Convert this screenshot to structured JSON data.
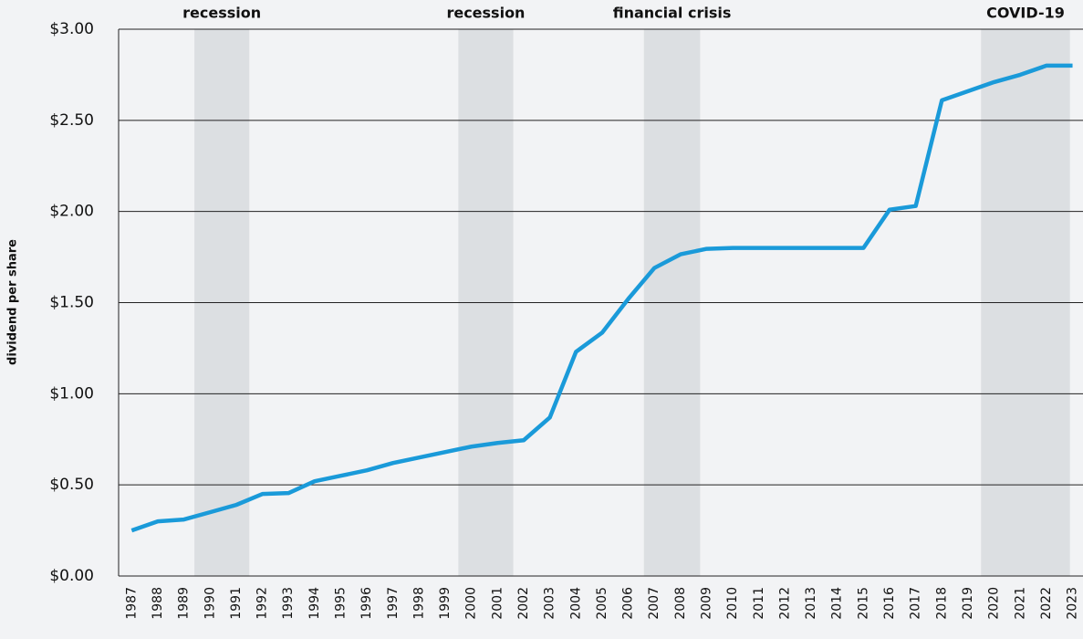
{
  "chart_data": {
    "type": "line",
    "y_label": "dividend per share",
    "x": [
      1987,
      1988,
      1989,
      1990,
      1991,
      1992,
      1993,
      1994,
      1995,
      1996,
      1997,
      1998,
      1999,
      2000,
      2001,
      2002,
      2003,
      2004,
      2005,
      2006,
      2007,
      2008,
      2009,
      2010,
      2011,
      2012,
      2013,
      2014,
      2015,
      2016,
      2017,
      2018,
      2019,
      2020,
      2021,
      2022,
      2023
    ],
    "series": [
      {
        "color": "#1a9ad9",
        "values": [
          0.25,
          0.3,
          0.31,
          0.35,
          0.39,
          0.45,
          0.455,
          0.52,
          0.55,
          0.58,
          0.62,
          0.65,
          0.68,
          0.71,
          0.73,
          0.745,
          0.87,
          1.23,
          1.335,
          1.52,
          1.69,
          1.765,
          1.795,
          1.8,
          1.8,
          1.8,
          1.8,
          1.8,
          1.8,
          2.01,
          2.03,
          2.61,
          2.66,
          2.71,
          2.75,
          2.8,
          2.8
        ]
      }
    ],
    "xlim": [
      1986.5,
      2023.4
    ],
    "xticks": [
      1987,
      1988,
      1989,
      1990,
      1991,
      1992,
      1993,
      1994,
      1995,
      1996,
      1997,
      1998,
      1999,
      2000,
      2001,
      2002,
      2003,
      2004,
      2005,
      2006,
      2007,
      2008,
      2009,
      2010,
      2011,
      2012,
      2013,
      2014,
      2015,
      2016,
      2017,
      2018,
      2019,
      2020,
      2021,
      2022,
      2023
    ],
    "ylim": [
      0,
      3
    ],
    "yticks": [
      {
        "value": 0,
        "label": "$0.00"
      },
      {
        "value": 0.5,
        "label": "$0.50"
      },
      {
        "value": 1,
        "label": "$1.00"
      },
      {
        "value": 1.5,
        "label": "$1.50"
      },
      {
        "value": 2,
        "label": "$2.00"
      },
      {
        "value": 2.5,
        "label": "$2.50"
      },
      {
        "value": 3,
        "label": "$3.00"
      }
    ],
    "grid": true,
    "shaded_regions": [
      {
        "label": "recession",
        "start": 1989.4,
        "end": 1991.5
      },
      {
        "label": "recession",
        "start": 1999.5,
        "end": 2001.6
      },
      {
        "label": "financial crisis",
        "start": 2006.6,
        "end": 2008.75
      },
      {
        "label": "COVID-19",
        "start": 2019.5,
        "end": 2022.9
      }
    ]
  }
}
